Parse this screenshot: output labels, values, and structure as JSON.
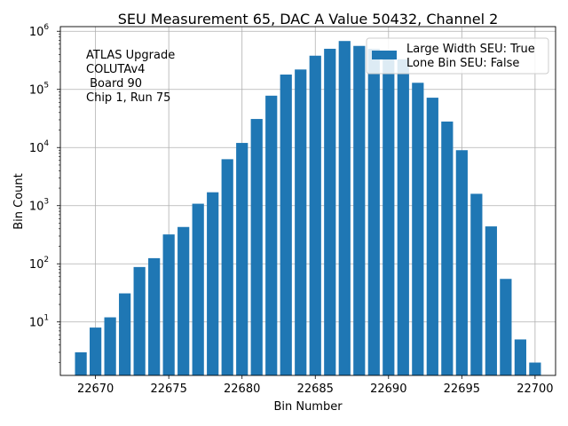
{
  "chart_data": {
    "type": "bar",
    "title": "SEU Measurement 65, DAC A Value 50432, Channel 2",
    "xlabel": "Bin Number",
    "ylabel": "Bin Count",
    "yscale": "log",
    "xlim": [
      22667.6,
      22701.4
    ],
    "ylim_log10": [
      0.08,
      6.08
    ],
    "grid": true,
    "bar_color": "#1f77b4",
    "x": [
      22669,
      22670,
      22671,
      22672,
      22673,
      22674,
      22675,
      22676,
      22677,
      22678,
      22679,
      22680,
      22681,
      22682,
      22683,
      22684,
      22685,
      22686,
      22687,
      22688,
      22689,
      22690,
      22691,
      22692,
      22693,
      22694,
      22695,
      22696,
      22697,
      22698,
      22699,
      22700
    ],
    "values": [
      3,
      8,
      12,
      31,
      88,
      125,
      320,
      430,
      1080,
      1700,
      6300,
      12000,
      31000,
      78000,
      180000,
      220000,
      380000,
      500000,
      680000,
      560000,
      500000,
      420000,
      330000,
      130000,
      72000,
      28000,
      9000,
      1600,
      440,
      55,
      5,
      2
    ],
    "xticks": [
      "22670",
      "22675",
      "22680",
      "22685",
      "22690",
      "22695",
      "22700"
    ],
    "yticks": [
      {
        "base": "10",
        "exp": "1"
      },
      {
        "base": "10",
        "exp": "2"
      },
      {
        "base": "10",
        "exp": "3"
      },
      {
        "base": "10",
        "exp": "4"
      },
      {
        "base": "10",
        "exp": "5"
      },
      {
        "base": "10",
        "exp": "6"
      }
    ],
    "annotation": [
      "ATLAS Upgrade",
      "COLUTAv4",
      " Board 90",
      "Chip 1, Run 75"
    ],
    "legend": {
      "placement": "top-right",
      "entries": [
        "Large Width SEU: True",
        "Lone Bin SEU: False"
      ]
    }
  }
}
